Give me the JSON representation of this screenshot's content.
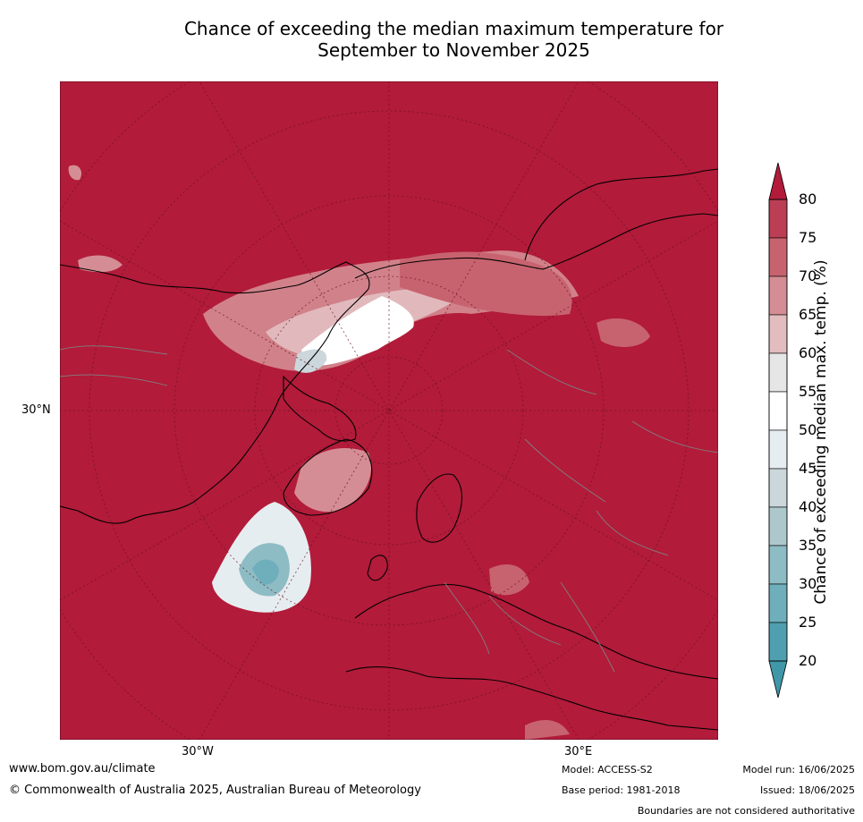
{
  "title_line1": "Chance of exceeding the median maximum temperature for",
  "title_line2": "September to November 2025",
  "axis": {
    "lat_label": "30°N",
    "lon_left": "30°W",
    "lon_right": "30°E"
  },
  "colorbar": {
    "title": "Chance of exceeding median max. temp. (%)",
    "ticks": [
      "80",
      "75",
      "70",
      "65",
      "60",
      "55",
      "50",
      "45",
      "40",
      "35",
      "30",
      "25",
      "20"
    ],
    "colors": [
      "#b21b3a",
      "#bb3e55",
      "#c7636f",
      "#d48d94",
      "#e2bcbf",
      "#e6e6e6",
      "#ffffff",
      "#e6edf0",
      "#cbd7db",
      "#adc8cc",
      "#8ebcc4",
      "#6faebb",
      "#4f9fb0"
    ],
    "over_color": "#b21b3a",
    "under_color": "#3f97a8"
  },
  "colors": {
    "background": "#b21b3a",
    "coast": "#000000",
    "borders": "#808080"
  },
  "footer": {
    "url": "www.bom.gov.au/climate",
    "copyright": "© Commonwealth of Australia 2025, Australian Bureau of Meteorology",
    "model": "Model: ACCESS-S2",
    "base_period": "Base period: 1981-2018",
    "model_run": "Model run: 16/06/2025",
    "issued": "Issued: 18/06/2025",
    "disclaimer": "Boundaries are not considered authoritative"
  }
}
